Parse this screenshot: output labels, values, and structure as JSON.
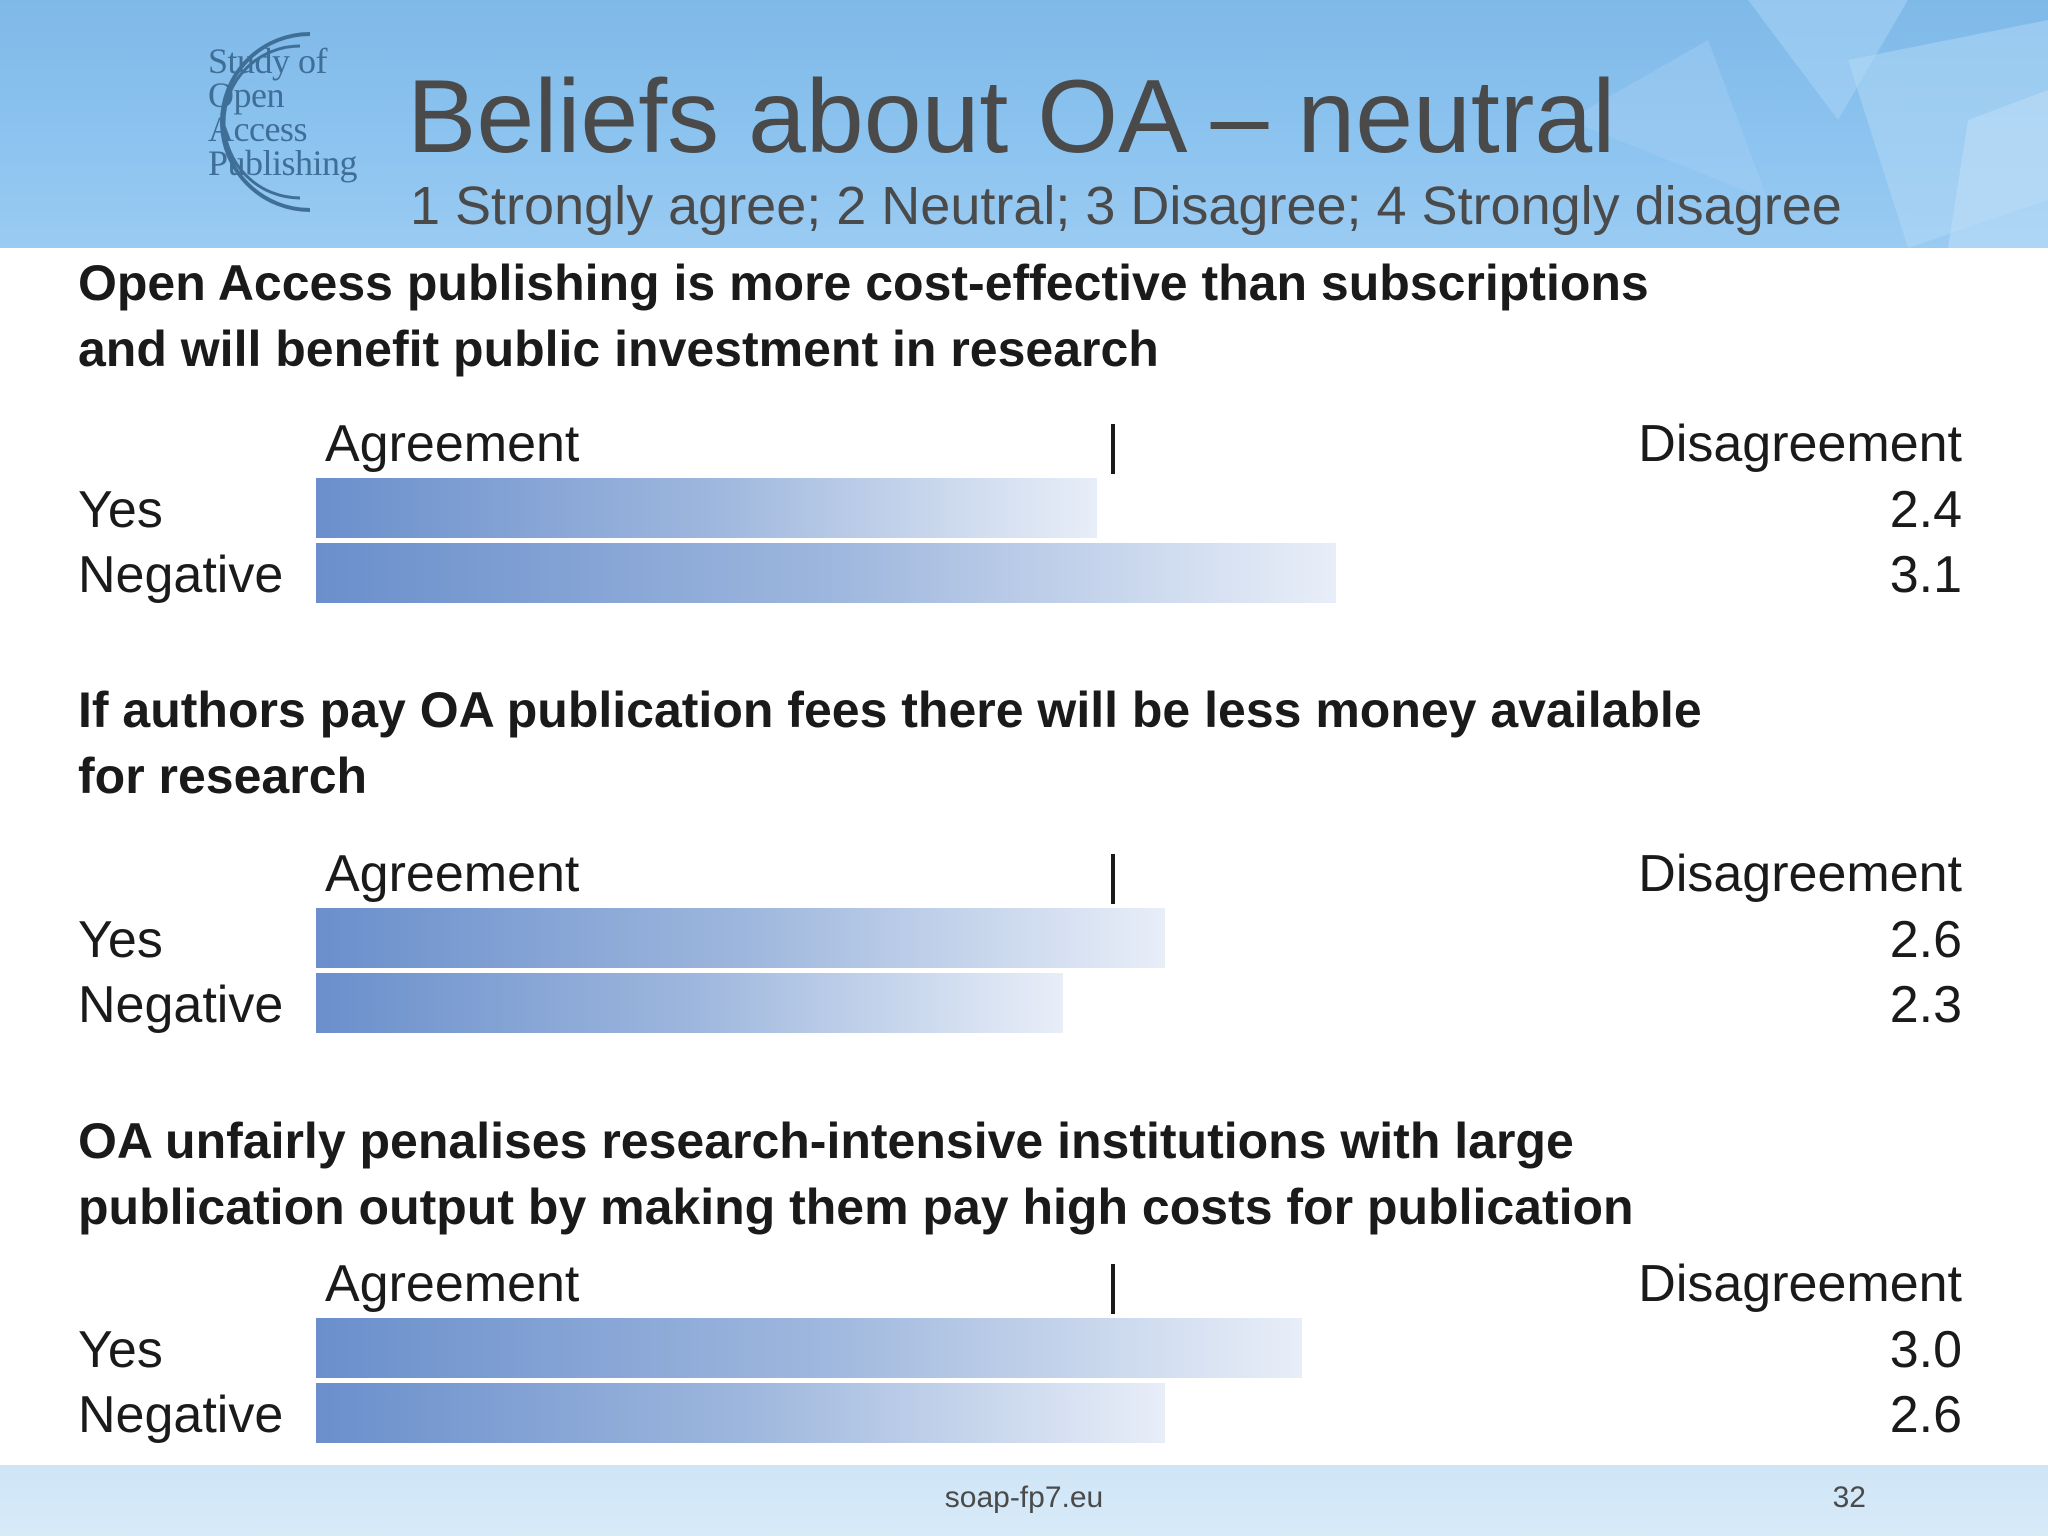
{
  "header": {
    "logo_lines": [
      "Study of",
      "Open",
      "Access",
      "Publishing"
    ],
    "title": "Beliefs about OA – neutral",
    "subtitle": "1 Strongly agree; 2 Neutral; 3 Disagree; 4 Strongly disagree"
  },
  "chart_data": [
    {
      "type": "bar",
      "orientation": "horizontal",
      "title": "Open Access publishing is more cost-effective than subscriptions and will benefit public investment in research",
      "title_lines": [
        "Open Access publishing is more cost-effective than subscriptions",
        "and will benefit public investment in research"
      ],
      "left_label": "Agreement",
      "right_label": "Disagreement",
      "categories": [
        "Yes",
        "Negative"
      ],
      "values": [
        2.4,
        3.1
      ],
      "value_labels": [
        "2.4",
        "3.1"
      ],
      "xlim": [
        0.0,
        4.0
      ]
    },
    {
      "type": "bar",
      "orientation": "horizontal",
      "title": "If authors pay OA publication fees there will be less money available for research",
      "title_lines": [
        "If authors pay OA publication fees there will be less money available",
        "for research"
      ],
      "left_label": "Agreement",
      "right_label": "Disagreement",
      "categories": [
        "Yes",
        "Negative"
      ],
      "values": [
        2.6,
        2.3
      ],
      "value_labels": [
        "2.6",
        "2.3"
      ],
      "xlim": [
        0.0,
        4.0
      ]
    },
    {
      "type": "bar",
      "orientation": "horizontal",
      "title": "OA unfairly penalises research-intensive institutions with large publication output by making them pay high costs for publication",
      "title_lines": [
        "OA unfairly penalises research-intensive institutions with large",
        "publication output by making them pay high costs for publication"
      ],
      "left_label": "Agreement",
      "right_label": "Disagreement",
      "categories": [
        "Yes",
        "Negative"
      ],
      "values": [
        3.0,
        2.6
      ],
      "value_labels": [
        "3.0",
        "2.6"
      ],
      "xlim": [
        0.0,
        4.0
      ]
    }
  ],
  "footer": {
    "site": "soap-fp7.eu",
    "page": "32"
  }
}
